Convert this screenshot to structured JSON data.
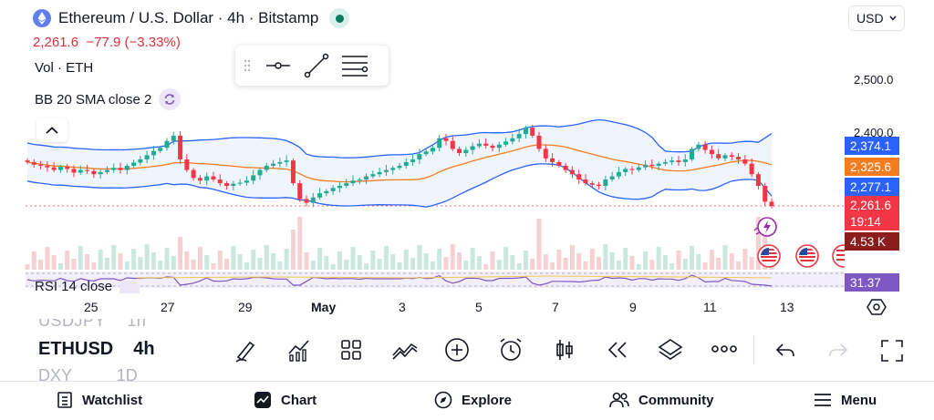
{
  "header": {
    "symbol_title": "Ethereum / U.S. Dollar · 4h · Bitstamp",
    "last_price": "2,261.6",
    "change": "−77.9",
    "change_pct": "(−3.33%)",
    "currency": "USD"
  },
  "indicators": {
    "volume": "Vol · ETH",
    "bollinger": "BB 20 SMA close 2",
    "rsi": "RSI 14 close"
  },
  "price_axis": {
    "labels": [
      "2,500.0",
      "2,400.0"
    ],
    "tags": [
      {
        "text": "2,374.1",
        "color": "#2962ff"
      },
      {
        "text": "2,325.6",
        "color": "#f57c1f"
      },
      {
        "text": "2,277.1",
        "color": "#2962ff"
      },
      {
        "text": "2,261.6",
        "color": "#f23645"
      },
      {
        "text": "19:14",
        "color": "#f23645"
      },
      {
        "text": "4.53 K",
        "color": "#8c1d1d"
      },
      {
        "text": "31.37",
        "color": "#7e57c2"
      }
    ]
  },
  "time_axis": [
    "25",
    "27",
    "29",
    "May",
    "3",
    "5",
    "7",
    "9",
    "11",
    "13"
  ],
  "symbols": {
    "previous": "USDJPY",
    "previous_interval": "1h",
    "current": "ETHUSD",
    "current_interval": "4h",
    "next": "DXY",
    "next_interval": "1D"
  },
  "nav": {
    "watchlist": "Watchlist",
    "chart": "Chart",
    "explore": "Explore",
    "community": "Community",
    "menu": "Menu"
  },
  "colors": {
    "up": "#22ab94",
    "down": "#f23645",
    "bb_band": "#2962ff",
    "bb_basis": "#f57c1f",
    "rsi": "#7e57c2"
  },
  "chart_data": {
    "type": "candlestick",
    "symbol": "ETHUSD",
    "interval": "4h",
    "y_range": [
      2180,
      2530
    ],
    "x_ticks": [
      "25",
      "27",
      "29",
      "May",
      "3",
      "5",
      "7",
      "9",
      "11",
      "13"
    ],
    "closes": [
      2345,
      2340,
      2338,
      2335,
      2330,
      2336,
      2332,
      2325,
      2330,
      2328,
      2322,
      2326,
      2330,
      2334,
      2330,
      2338,
      2344,
      2350,
      2358,
      2366,
      2372,
      2385,
      2395,
      2350,
      2330,
      2315,
      2310,
      2318,
      2312,
      2305,
      2300,
      2304,
      2306,
      2310,
      2320,
      2330,
      2338,
      2342,
      2345,
      2348,
      2305,
      2275,
      2268,
      2278,
      2286,
      2290,
      2296,
      2300,
      2305,
      2310,
      2312,
      2318,
      2322,
      2326,
      2330,
      2334,
      2338,
      2345,
      2350,
      2360,
      2365,
      2372,
      2390,
      2385,
      2370,
      2362,
      2368,
      2375,
      2380,
      2376,
      2372,
      2378,
      2384,
      2390,
      2398,
      2410,
      2395,
      2370,
      2352,
      2345,
      2338,
      2330,
      2322,
      2312,
      2305,
      2302,
      2300,
      2312,
      2318,
      2326,
      2332,
      2330,
      2335,
      2340,
      2338,
      2342,
      2345,
      2348,
      2345,
      2350,
      2370,
      2378,
      2368,
      2360,
      2352,
      2358,
      2355,
      2350,
      2342,
      2322,
      2300,
      2270,
      2261.6
    ],
    "bb_upper_end": 2374.1,
    "bb_basis_end": 2325.6,
    "bb_lower_end": 2277.1,
    "last_volume": "4.53 K",
    "rsi_last": 31.37
  }
}
